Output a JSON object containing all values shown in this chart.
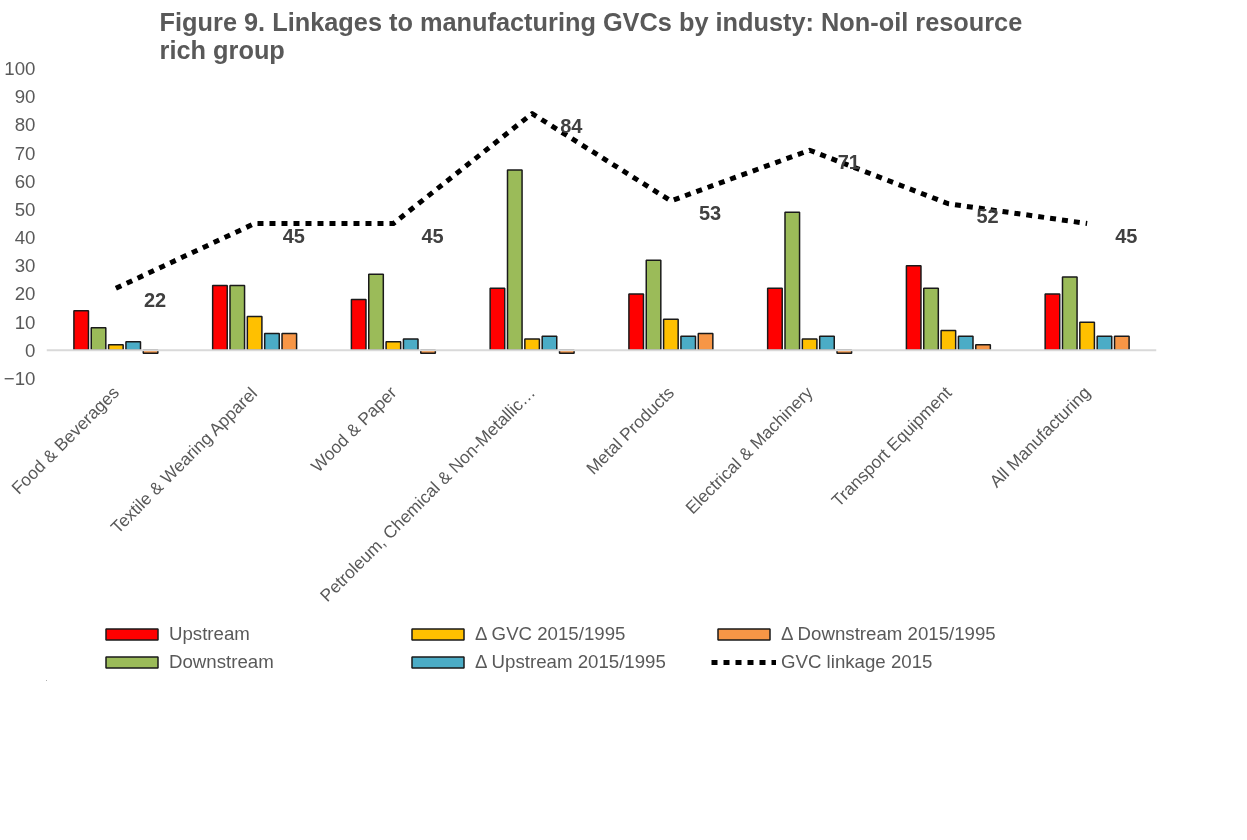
{
  "chart_data": {
    "type": "bar",
    "title": "Figure 9.   Linkages to manufacturing GVCs by industy:  Non-oil resource rich group",
    "categories": [
      "Food & Beverages",
      "Textile & Wearing Apparel",
      "Wood & Paper",
      "Petroleum, Chemical & Non-Metallic…",
      "Metal Products",
      "Electrical & Machinery",
      "Transport Equipment",
      "All Manufacturing"
    ],
    "series": [
      {
        "name": "Upstream",
        "color": "#ff0000",
        "values": [
          14,
          23,
          18,
          22,
          20,
          22,
          30,
          20
        ]
      },
      {
        "name": "Downstream",
        "color": "#9bbb59",
        "values": [
          8,
          23,
          27,
          64,
          32,
          49,
          22,
          26
        ]
      },
      {
        "name": "Δ GVC 2015/1995",
        "color": "#ffc000",
        "values": [
          2,
          12,
          3,
          4,
          11,
          4,
          7,
          10
        ]
      },
      {
        "name": "Δ Upstream 2015/1995",
        "color": "#4bacc6",
        "values": [
          3,
          6,
          4,
          5,
          5,
          5,
          5,
          5
        ]
      },
      {
        "name": "Δ Downstream 2015/1995",
        "color": "#f79646",
        "values": [
          -1,
          6,
          -1,
          -1,
          6,
          -1,
          2,
          5
        ]
      },
      {
        "name": "GVC linkage 2015",
        "type": "line",
        "color": "#000000",
        "line_style": "dashed",
        "values": [
          22,
          45,
          45,
          84,
          53,
          71,
          52,
          45
        ],
        "value_labels": [
          "22",
          "45",
          "45",
          "84",
          "53",
          "71",
          "52",
          "45"
        ]
      }
    ],
    "ylim": [
      -10,
      100
    ],
    "yticks": [
      -10,
      0,
      10,
      20,
      30,
      40,
      50,
      60,
      70,
      80,
      90,
      100
    ],
    "grid": false,
    "legend": "bottom"
  }
}
